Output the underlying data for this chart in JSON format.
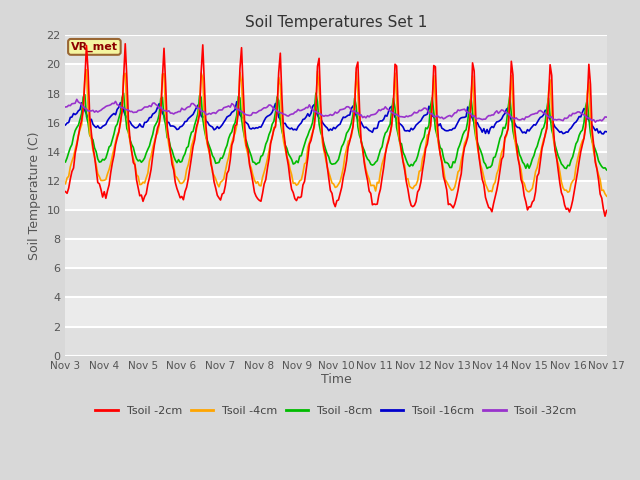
{
  "title": "Soil Temperatures Set 1",
  "xlabel": "Time",
  "ylabel": "Soil Temperature (C)",
  "ylim": [
    0,
    22
  ],
  "yticks": [
    0,
    2,
    4,
    6,
    8,
    10,
    12,
    14,
    16,
    18,
    20,
    22
  ],
  "fig_facecolor": "#d8d8d8",
  "plot_facecolor": "#e8e8e8",
  "grid_color": "#ffffff",
  "annotation_text": "VR_met",
  "annotation_color": "#8b0000",
  "annotation_bg": "#f5f5a0",
  "annotation_border": "#996633",
  "series_colors": {
    "Tsoil -2cm": "#ff0000",
    "Tsoil -4cm": "#ffa500",
    "Tsoil -8cm": "#00bb00",
    "Tsoil -16cm": "#0000cc",
    "Tsoil -32cm": "#9933cc"
  },
  "x_tick_labels": [
    "Nov 3",
    "Nov 4",
    "Nov 5",
    "Nov 6",
    "Nov 7",
    "Nov 8",
    "Nov 9",
    "Nov 10",
    "Nov 11",
    "Nov 12",
    "Nov 13",
    "Nov 14",
    "Nov 15",
    "Nov 16",
    "Nov 17"
  ],
  "n_points": 336,
  "seed": 0
}
